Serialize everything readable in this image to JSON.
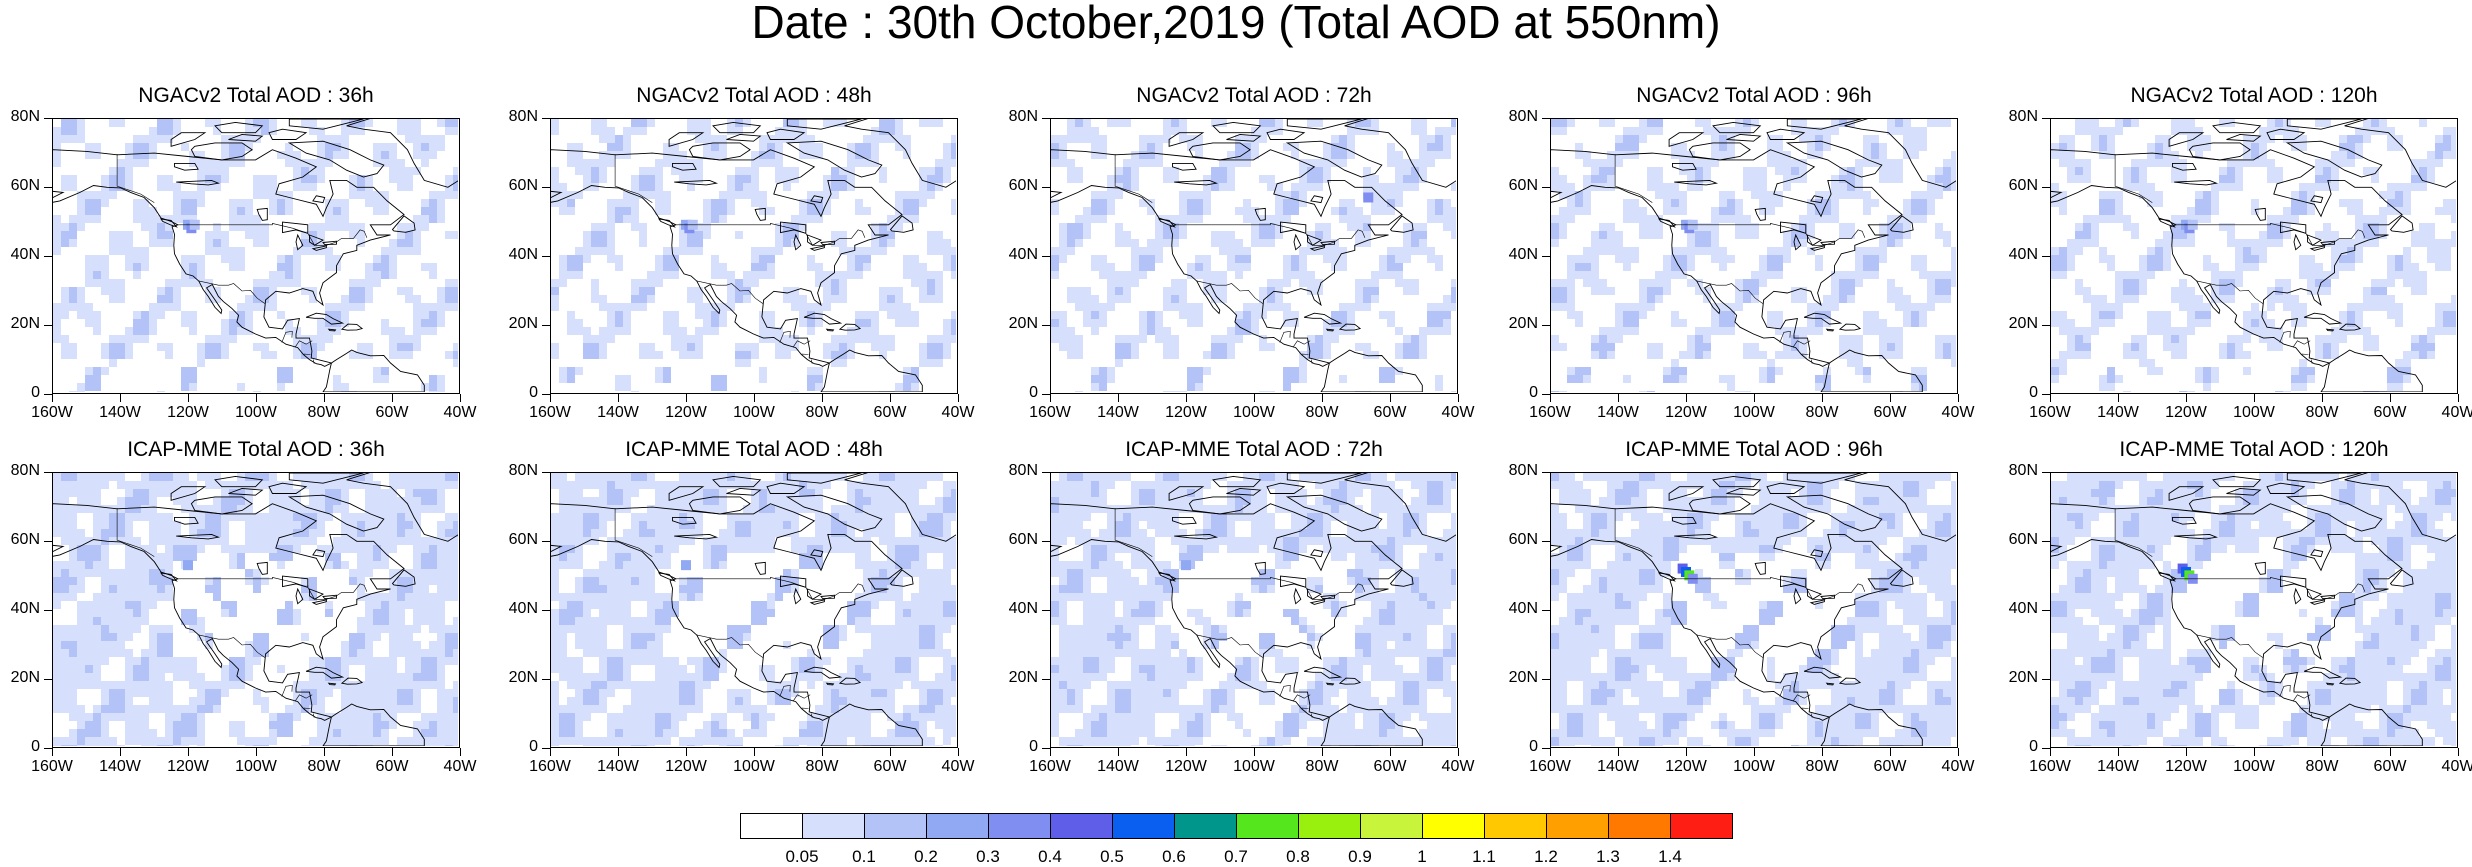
{
  "title": "Date : 30th October,2019 (Total AOD at 550nm)",
  "axes": {
    "lat_ticks": [
      "80N",
      "60N",
      "40N",
      "20N",
      "0"
    ],
    "lon_ticks": [
      "160W",
      "140W",
      "120W",
      "100W",
      "80W",
      "60W",
      "40W"
    ]
  },
  "panels": [
    {
      "title": "NGACv2 Total AOD : 36h",
      "model": "NGACv2",
      "lead": "36h"
    },
    {
      "title": "NGACv2 Total AOD : 48h",
      "model": "NGACv2",
      "lead": "48h"
    },
    {
      "title": "NGACv2 Total AOD : 72h",
      "model": "NGACv2",
      "lead": "72h"
    },
    {
      "title": "NGACv2 Total AOD : 96h",
      "model": "NGACv2",
      "lead": "96h"
    },
    {
      "title": "NGACv2 Total AOD : 120h",
      "model": "NGACv2",
      "lead": "120h"
    },
    {
      "title": "ICAP-MME Total AOD : 36h",
      "model": "ICAP-MME",
      "lead": "36h"
    },
    {
      "title": "ICAP-MME Total AOD : 48h",
      "model": "ICAP-MME",
      "lead": "48h"
    },
    {
      "title": "ICAP-MME Total AOD : 72h",
      "model": "ICAP-MME",
      "lead": "72h"
    },
    {
      "title": "ICAP-MME Total AOD : 96h",
      "model": "ICAP-MME",
      "lead": "96h"
    },
    {
      "title": "ICAP-MME Total AOD : 120h",
      "model": "ICAP-MME",
      "lead": "120h"
    }
  ],
  "colorbar": {
    "labels": [
      "0.05",
      "0.1",
      "0.2",
      "0.3",
      "0.4",
      "0.5",
      "0.6",
      "0.7",
      "0.8",
      "0.9",
      "1",
      "1.1",
      "1.2",
      "1.3",
      "1.4"
    ],
    "colors": [
      "#ffffff",
      "#d6dffc",
      "#b3c2f7",
      "#91a8f2",
      "#7f8ef0",
      "#5e5ee8",
      "#0a5ef0",
      "#00968c",
      "#55e61e",
      "#99f00f",
      "#c8f53c",
      "#ffff00",
      "#ffc800",
      "#ffa000",
      "#ff7800",
      "#ff1e14"
    ]
  }
}
